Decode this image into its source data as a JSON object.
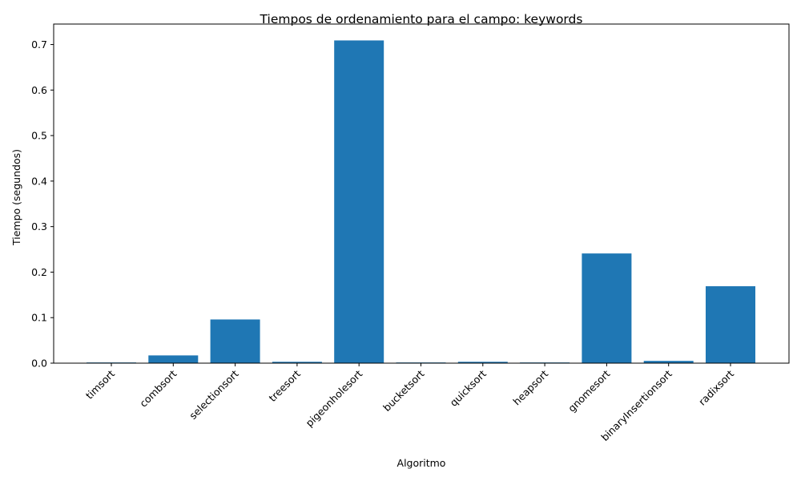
{
  "chart_data": {
    "type": "bar",
    "title": "Tiempos de ordenamiento para el campo: keywords",
    "xlabel": "Algoritmo",
    "ylabel": "Tiempo (segundos)",
    "categories": [
      "timsort",
      "combsort",
      "selectionsort",
      "treesort",
      "pigeonholesort",
      "bucketsort",
      "quicksort",
      "heapsort",
      "gnomesort",
      "binaryInsertionsort",
      "radixsort"
    ],
    "values": [
      0.0015,
      0.017,
      0.096,
      0.003,
      0.709,
      0.0015,
      0.003,
      0.0015,
      0.241,
      0.005,
      0.169
    ],
    "yticks": [
      "0.0",
      "0.1",
      "0.2",
      "0.3",
      "0.4",
      "0.5",
      "0.6",
      "0.7"
    ],
    "ylim": [
      0,
      0.745
    ],
    "bar_color": "#1f77b4",
    "grid": false,
    "legend": "none"
  }
}
